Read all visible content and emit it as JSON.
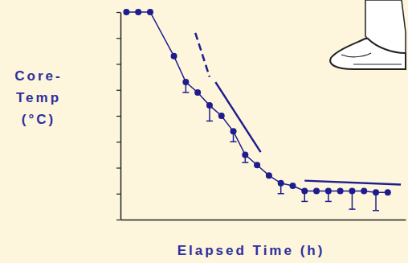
{
  "chart_data": {
    "type": "line",
    "xlabel": "Elapsed Time (h)",
    "ylabel": [
      "Core-",
      "Temp",
      "(°C)"
    ],
    "x": [
      0.5,
      1.5,
      2.5,
      4.5,
      5.5,
      6.5,
      7.5,
      8.5,
      9.5,
      10.5,
      11.5,
      12.5,
      13.5,
      14.5,
      15.5,
      16.5,
      17.5,
      18.5,
      19.5,
      20.5,
      21.5,
      22.5
    ],
    "series": [
      {
        "color": "#1d1d8f",
        "marker": "circle",
        "line_style": "solid",
        "values": [
          8.0,
          8.0,
          8.0,
          6.3,
          5.3,
          4.9,
          4.4,
          4.0,
          3.4,
          2.5,
          2.1,
          1.7,
          1.4,
          1.3,
          1.1,
          1.1,
          1.1,
          1.1,
          1.1,
          1.1,
          1.05,
          1.05
        ],
        "errors": [
          null,
          null,
          null,
          null,
          0.4,
          null,
          0.6,
          null,
          0.4,
          0.3,
          null,
          null,
          0.4,
          null,
          0.4,
          null,
          0.4,
          null,
          0.7,
          null,
          0.7,
          null
        ]
      }
    ],
    "trend_lines": [
      {
        "x": [
          6.3,
          7.5
        ],
        "y": [
          7.2,
          5.5
        ],
        "line_style": "dashed"
      },
      {
        "x": [
          8.0,
          11.8
        ],
        "y": [
          5.3,
          2.6
        ],
        "line_style": "solid"
      },
      {
        "x": [
          15.5,
          23.6
        ],
        "y": [
          1.5,
          1.35
        ],
        "line_style": "solid"
      }
    ],
    "xlim": [
      0,
      24
    ],
    "ylim": [
      0,
      8
    ],
    "yticks": [
      0,
      1,
      2,
      3,
      4,
      5,
      6,
      7,
      8
    ],
    "tick_labels": false
  }
}
